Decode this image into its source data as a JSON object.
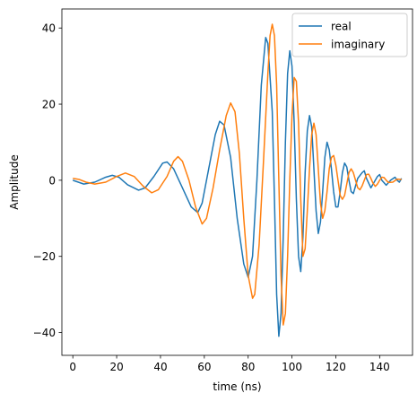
{
  "chart_data": {
    "type": "line",
    "xlabel": "time (ns)",
    "ylabel": "Amplitude",
    "xlim": [
      -5,
      155
    ],
    "ylim": [
      -46,
      45
    ],
    "xticks": [
      0,
      20,
      40,
      60,
      80,
      100,
      120,
      140
    ],
    "yticks": [
      -40,
      -20,
      0,
      20,
      40
    ],
    "ytick_labels": [
      "−40",
      "−20",
      "0",
      "20",
      "40"
    ],
    "grid": false,
    "legend_position": "top-right",
    "series": [
      {
        "name": "real",
        "color": "#1f77b4",
        "points": [
          [
            0,
            0
          ],
          [
            5,
            -1
          ],
          [
            10,
            -0.5
          ],
          [
            15,
            0.8
          ],
          [
            18,
            1.3
          ],
          [
            21,
            0.8
          ],
          [
            25,
            -1.2
          ],
          [
            30,
            -2.6
          ],
          [
            33,
            -2
          ],
          [
            37,
            1
          ],
          [
            41,
            4.5
          ],
          [
            43,
            4.8
          ],
          [
            46,
            3
          ],
          [
            50,
            -2
          ],
          [
            54,
            -7
          ],
          [
            57,
            -8.5
          ],
          [
            59,
            -6
          ],
          [
            62,
            3
          ],
          [
            65,
            12
          ],
          [
            67,
            15.5
          ],
          [
            69,
            14.5
          ],
          [
            72,
            6
          ],
          [
            75,
            -10
          ],
          [
            78,
            -22
          ],
          [
            80,
            -25.5
          ],
          [
            82,
            -20
          ],
          [
            84,
            0
          ],
          [
            86,
            25
          ],
          [
            88,
            37.5
          ],
          [
            89,
            36
          ],
          [
            91,
            18
          ],
          [
            92,
            -5
          ],
          [
            93,
            -30
          ],
          [
            94,
            -41
          ],
          [
            95,
            -35
          ],
          [
            96,
            -15
          ],
          [
            97,
            10
          ],
          [
            98,
            28
          ],
          [
            99,
            34
          ],
          [
            100,
            30
          ],
          [
            101,
            15
          ],
          [
            102,
            -5
          ],
          [
            103,
            -20
          ],
          [
            104,
            -24
          ],
          [
            105,
            -15
          ],
          [
            106,
            2
          ],
          [
            107,
            13
          ],
          [
            108,
            17
          ],
          [
            109,
            14
          ],
          [
            110,
            3
          ],
          [
            111,
            -8
          ],
          [
            112,
            -14
          ],
          [
            113,
            -11
          ],
          [
            114,
            -3
          ],
          [
            115,
            6
          ],
          [
            116,
            10
          ],
          [
            117,
            8
          ],
          [
            118,
            3
          ],
          [
            119,
            -3
          ],
          [
            120,
            -7
          ],
          [
            121,
            -7
          ],
          [
            122,
            -3
          ],
          [
            123,
            2
          ],
          [
            124,
            4.5
          ],
          [
            125,
            3.5
          ],
          [
            126,
            0
          ],
          [
            127,
            -3
          ],
          [
            128,
            -3.5
          ],
          [
            129,
            -1.5
          ],
          [
            130,
            0.5
          ],
          [
            132,
            2
          ],
          [
            133,
            2.5
          ],
          [
            134,
            0.5
          ],
          [
            136,
            -2
          ],
          [
            137,
            -1
          ],
          [
            139,
            1
          ],
          [
            140,
            1.5
          ],
          [
            141,
            0
          ],
          [
            143,
            -1.3
          ],
          [
            145,
            0
          ],
          [
            147,
            0.8
          ],
          [
            148,
            0
          ],
          [
            149,
            -0.5
          ],
          [
            150,
            0.5
          ]
        ]
      },
      {
        "name": "imaginary",
        "color": "#ff7f0e",
        "points": [
          [
            0,
            0.5
          ],
          [
            3,
            0.2
          ],
          [
            6,
            -0.5
          ],
          [
            10,
            -1
          ],
          [
            15,
            -0.5
          ],
          [
            20,
            1
          ],
          [
            24,
            1.9
          ],
          [
            28,
            1
          ],
          [
            32,
            -1.5
          ],
          [
            36,
            -3.3
          ],
          [
            39,
            -2.5
          ],
          [
            43,
            1
          ],
          [
            46,
            5
          ],
          [
            48,
            6.2
          ],
          [
            50,
            5
          ],
          [
            53,
            0
          ],
          [
            56,
            -7
          ],
          [
            59,
            -11.5
          ],
          [
            61,
            -10
          ],
          [
            64,
            -2
          ],
          [
            67,
            8
          ],
          [
            70,
            17
          ],
          [
            72,
            20.3
          ],
          [
            74,
            18
          ],
          [
            76,
            7
          ],
          [
            78,
            -10
          ],
          [
            80,
            -25
          ],
          [
            82,
            -31
          ],
          [
            83,
            -30
          ],
          [
            85,
            -17
          ],
          [
            87,
            5
          ],
          [
            89,
            28
          ],
          [
            90,
            38
          ],
          [
            91,
            41
          ],
          [
            92,
            38
          ],
          [
            93,
            25
          ],
          [
            94,
            0
          ],
          [
            95,
            -25
          ],
          [
            96,
            -38
          ],
          [
            97,
            -35
          ],
          [
            98,
            -20
          ],
          [
            99,
            0
          ],
          [
            100,
            17
          ],
          [
            101,
            27
          ],
          [
            102,
            26
          ],
          [
            103,
            15
          ],
          [
            104,
            -5
          ],
          [
            105,
            -20
          ],
          [
            106,
            -18
          ],
          [
            107,
            -8
          ],
          [
            108,
            3
          ],
          [
            109,
            12
          ],
          [
            110,
            15
          ],
          [
            111,
            12
          ],
          [
            112,
            3
          ],
          [
            113,
            -6
          ],
          [
            114,
            -10
          ],
          [
            115,
            -8
          ],
          [
            116,
            -3
          ],
          [
            117,
            3
          ],
          [
            118,
            6
          ],
          [
            119,
            6.5
          ],
          [
            120,
            4
          ],
          [
            121,
            0
          ],
          [
            122,
            -4
          ],
          [
            123,
            -5
          ],
          [
            124,
            -4
          ],
          [
            125,
            -1
          ],
          [
            126,
            2
          ],
          [
            127,
            3
          ],
          [
            128,
            2
          ],
          [
            129,
            0
          ],
          [
            130,
            -2
          ],
          [
            131,
            -2.5
          ],
          [
            132,
            -1.5
          ],
          [
            133,
            0
          ],
          [
            134,
            1.5
          ],
          [
            135,
            1.6
          ],
          [
            136,
            0.5
          ],
          [
            137,
            -0.8
          ],
          [
            138,
            -1.6
          ],
          [
            139,
            -1
          ],
          [
            140,
            0
          ],
          [
            141,
            0.8
          ],
          [
            142,
            0.7
          ],
          [
            143,
            0
          ],
          [
            144,
            -0.6
          ],
          [
            146,
            -0.5
          ],
          [
            148,
            0.3
          ],
          [
            150,
            0.2
          ]
        ]
      }
    ]
  }
}
